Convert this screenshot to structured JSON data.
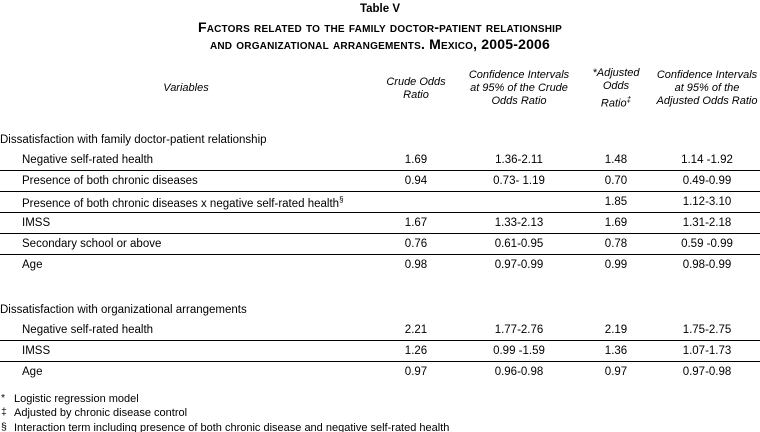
{
  "title": {
    "table_number": "Table V",
    "line1": "Factors related to the family doctor-patient relationship",
    "line2": "and organizational arrangements. Mexico, 2005-2006"
  },
  "columns": {
    "variables": "Variables",
    "crude_or_lines": [
      "Crude Odds",
      "Ratio"
    ],
    "ci_crude_lines": [
      "Confidence Intervals",
      "at 95% of the Crude",
      "Odds Ratio"
    ],
    "adjusted_or_lines": [
      "*Adjusted",
      "Odds",
      "Ratio"
    ],
    "adjusted_or_sup": "‡",
    "ci_adjusted_lines": [
      "Confidence Intervals",
      "at 95% of the",
      "Adjusted Odds Ratio"
    ]
  },
  "sections": [
    {
      "header": "Dissatisfaction with family doctor-patient relationship",
      "rows": [
        {
          "label": "Negative self-rated health",
          "crude_or": "1.69",
          "ci_crude": "1.36-2.11",
          "adjusted_or": "1.48",
          "ci_adjusted": "1.14 -1.92"
        },
        {
          "label": "Presence of both chronic diseases",
          "crude_or": "0.94",
          "ci_crude": "0.73- 1.19",
          "adjusted_or": "0.70",
          "ci_adjusted": "0.49-0.99"
        },
        {
          "label": "Presence of both chronic diseases x negative self-rated health",
          "label_sup": "§",
          "crude_or": "",
          "ci_crude": "",
          "adjusted_or": "1.85",
          "ci_adjusted": "1.12-3.10"
        },
        {
          "label": "IMSS",
          "crude_or": "1.67",
          "ci_crude": "1.33-2.13",
          "adjusted_or": "1.69",
          "ci_adjusted": "1.31-2.18"
        },
        {
          "label": "Secondary school or above",
          "crude_or": "0.76",
          "ci_crude": "0.61-0.95",
          "adjusted_or": "0.78",
          "ci_adjusted": "0.59 -0.99"
        },
        {
          "label": "Age",
          "crude_or": "0.98",
          "ci_crude": "0.97-0.99",
          "adjusted_or": "0.99",
          "ci_adjusted": "0.98-0.99"
        }
      ]
    },
    {
      "header": "Dissatisfaction with organizational arrangements",
      "rows": [
        {
          "label": "Negative self-rated health",
          "crude_or": "2.21",
          "ci_crude": "1.77-2.76",
          "adjusted_or": "2.19",
          "ci_adjusted": "1.75-2.75"
        },
        {
          "label": "IMSS",
          "crude_or": "1.26",
          "ci_crude": "0.99 -1.59",
          "adjusted_or": "1.36",
          "ci_adjusted": "1.07-1.73"
        },
        {
          "label": "Age",
          "crude_or": "0.97",
          "ci_crude": "0.96-0.98",
          "adjusted_or": "0.97",
          "ci_adjusted": "0.97-0.98"
        }
      ]
    }
  ],
  "footnotes": [
    {
      "marker": "*",
      "text": "Logistic regression model"
    },
    {
      "marker": "‡",
      "text": "Adjusted by chronic disease control"
    },
    {
      "marker": "§",
      "text": "Interaction term including presence of both chronic disease and negative self-rated health"
    }
  ],
  "colors": {
    "text": "#000000",
    "background": "#ffffff",
    "rule": "#000000"
  }
}
